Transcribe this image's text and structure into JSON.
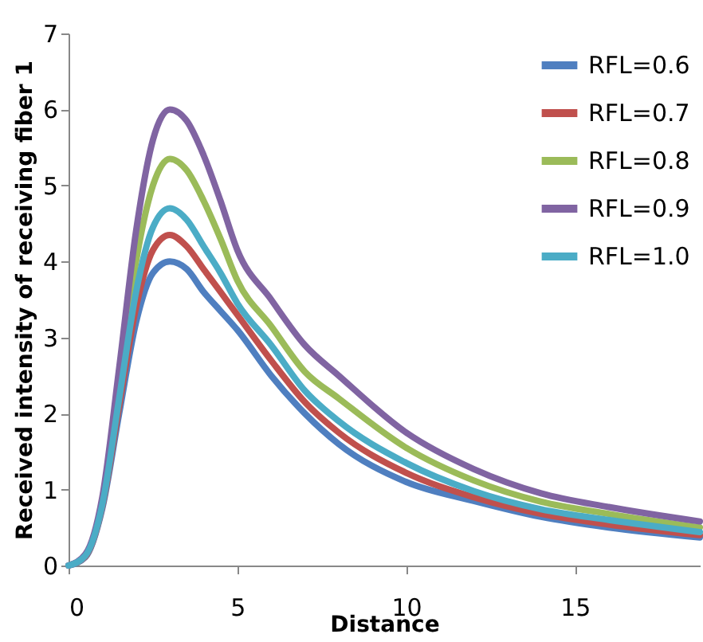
{
  "chart_data": {
    "type": "line",
    "xlabel": "Distance",
    "ylabel": "Received intensity of receiving fiber 1",
    "x": [
      0,
      0.5,
      1,
      1.5,
      2,
      2.5,
      3,
      3.5,
      4,
      4.5,
      5,
      6,
      7,
      8,
      10,
      12,
      14,
      16,
      18.7
    ],
    "series": [
      {
        "name": "RFL=0.6",
        "color": "#4f7fc0",
        "values": [
          0,
          0.11,
          0.75,
          2.0,
          3.2,
          3.85,
          4.0,
          3.9,
          3.6,
          3.35,
          3.1,
          2.5,
          2.0,
          1.6,
          1.1,
          0.85,
          0.64,
          0.5,
          0.37
        ]
      },
      {
        "name": "RFL=0.7",
        "color": "#c0504d",
        "values": [
          0,
          0.12,
          0.78,
          2.1,
          3.4,
          4.15,
          4.35,
          4.2,
          3.9,
          3.6,
          3.3,
          2.7,
          2.15,
          1.75,
          1.22,
          0.9,
          0.68,
          0.54,
          0.4
        ]
      },
      {
        "name": "RFL=0.8",
        "color": "#9bbb59",
        "values": [
          null,
          null,
          null,
          2.4,
          4.0,
          5.0,
          5.35,
          5.2,
          4.8,
          4.3,
          3.75,
          3.15,
          2.55,
          2.2,
          1.55,
          1.12,
          0.84,
          0.68,
          0.5
        ]
      },
      {
        "name": "RFL=0.9",
        "color": "#8064a2",
        "values": [
          0,
          0.15,
          0.9,
          2.6,
          4.4,
          5.6,
          6.0,
          5.85,
          5.4,
          4.8,
          4.15,
          3.5,
          2.9,
          2.5,
          1.75,
          1.27,
          0.95,
          0.77,
          0.58
        ]
      },
      {
        "name": "RFL=1.0",
        "color": "#4bacc6",
        "values": [
          0,
          0.13,
          0.8,
          2.2,
          3.6,
          4.45,
          4.7,
          4.55,
          4.2,
          3.85,
          3.45,
          2.9,
          2.3,
          1.9,
          1.35,
          0.98,
          0.74,
          0.6,
          0.44
        ]
      }
    ],
    "xlim": [
      0,
      18.7
    ],
    "xticks": [
      0,
      5,
      10,
      15
    ],
    "ylim": [
      0,
      7
    ],
    "yticks": [
      0,
      1,
      2,
      3,
      4,
      5,
      6,
      7
    ],
    "grid": false,
    "legend": "top right",
    "marker": "none",
    "line_style": "solid"
  }
}
